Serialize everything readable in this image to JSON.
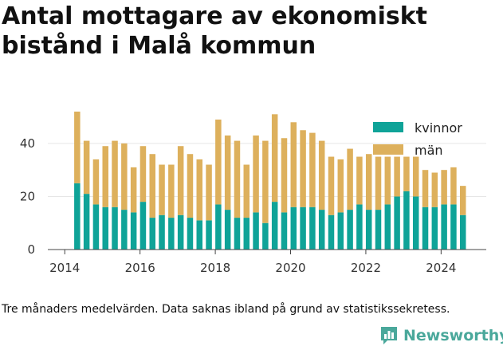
{
  "title": "Antal mottagare av ekonomiskt bistånd i Malå kommun",
  "footnote": "Tre månaders medelvärden. Data saknas ibland på grund av statistikssekretess.",
  "brand": {
    "name": "Newsworthy",
    "logo_icon": "newsworthy-chart-bubble-icon"
  },
  "colors": {
    "kvinnor": "#0fa398",
    "man": "#ddb05c",
    "grid": "#e6e6e6",
    "axis": "#444444"
  },
  "chart_data": {
    "type": "bar",
    "stacked": true,
    "x": [
      2014.33,
      2014.58,
      2014.83,
      2015.08,
      2015.33,
      2015.58,
      2015.83,
      2016.08,
      2016.33,
      2016.58,
      2016.83,
      2017.08,
      2017.33,
      2017.58,
      2017.83,
      2018.08,
      2018.33,
      2018.58,
      2018.83,
      2019.08,
      2019.33,
      2019.58,
      2019.83,
      2020.08,
      2020.33,
      2020.58,
      2020.83,
      2021.08,
      2021.33,
      2021.58,
      2021.83,
      2022.08,
      2022.33,
      2022.58,
      2022.83,
      2023.08,
      2023.33,
      2023.58,
      2023.83,
      2024.08,
      2024.33,
      2024.58
    ],
    "series": [
      {
        "name": "kvinnor",
        "values": [
          25,
          21,
          17,
          16,
          16,
          15,
          14,
          18,
          12,
          13,
          12,
          13,
          12,
          11,
          11,
          17,
          15,
          12,
          12,
          14,
          10,
          18,
          14,
          16,
          16,
          16,
          15,
          13,
          14,
          15,
          17,
          15,
          15,
          17,
          20,
          22,
          20,
          16,
          16,
          17,
          17,
          13
        ]
      },
      {
        "name": "män",
        "values": [
          27,
          20,
          17,
          23,
          25,
          25,
          17,
          21,
          24,
          19,
          20,
          26,
          24,
          23,
          21,
          32,
          28,
          29,
          20,
          29,
          31,
          33,
          28,
          32,
          29,
          28,
          26,
          22,
          20,
          23,
          18,
          21,
          20,
          18,
          15,
          13,
          15,
          14,
          13,
          13,
          14,
          11
        ]
      }
    ],
    "xticks": [
      2014,
      2016,
      2018,
      2020,
      2022,
      2024
    ],
    "yticks": [
      0,
      20,
      40
    ],
    "ylim": [
      0,
      55
    ],
    "xlim": [
      2013.55,
      2025.2
    ],
    "grid": true,
    "legend_position": "top-right"
  }
}
